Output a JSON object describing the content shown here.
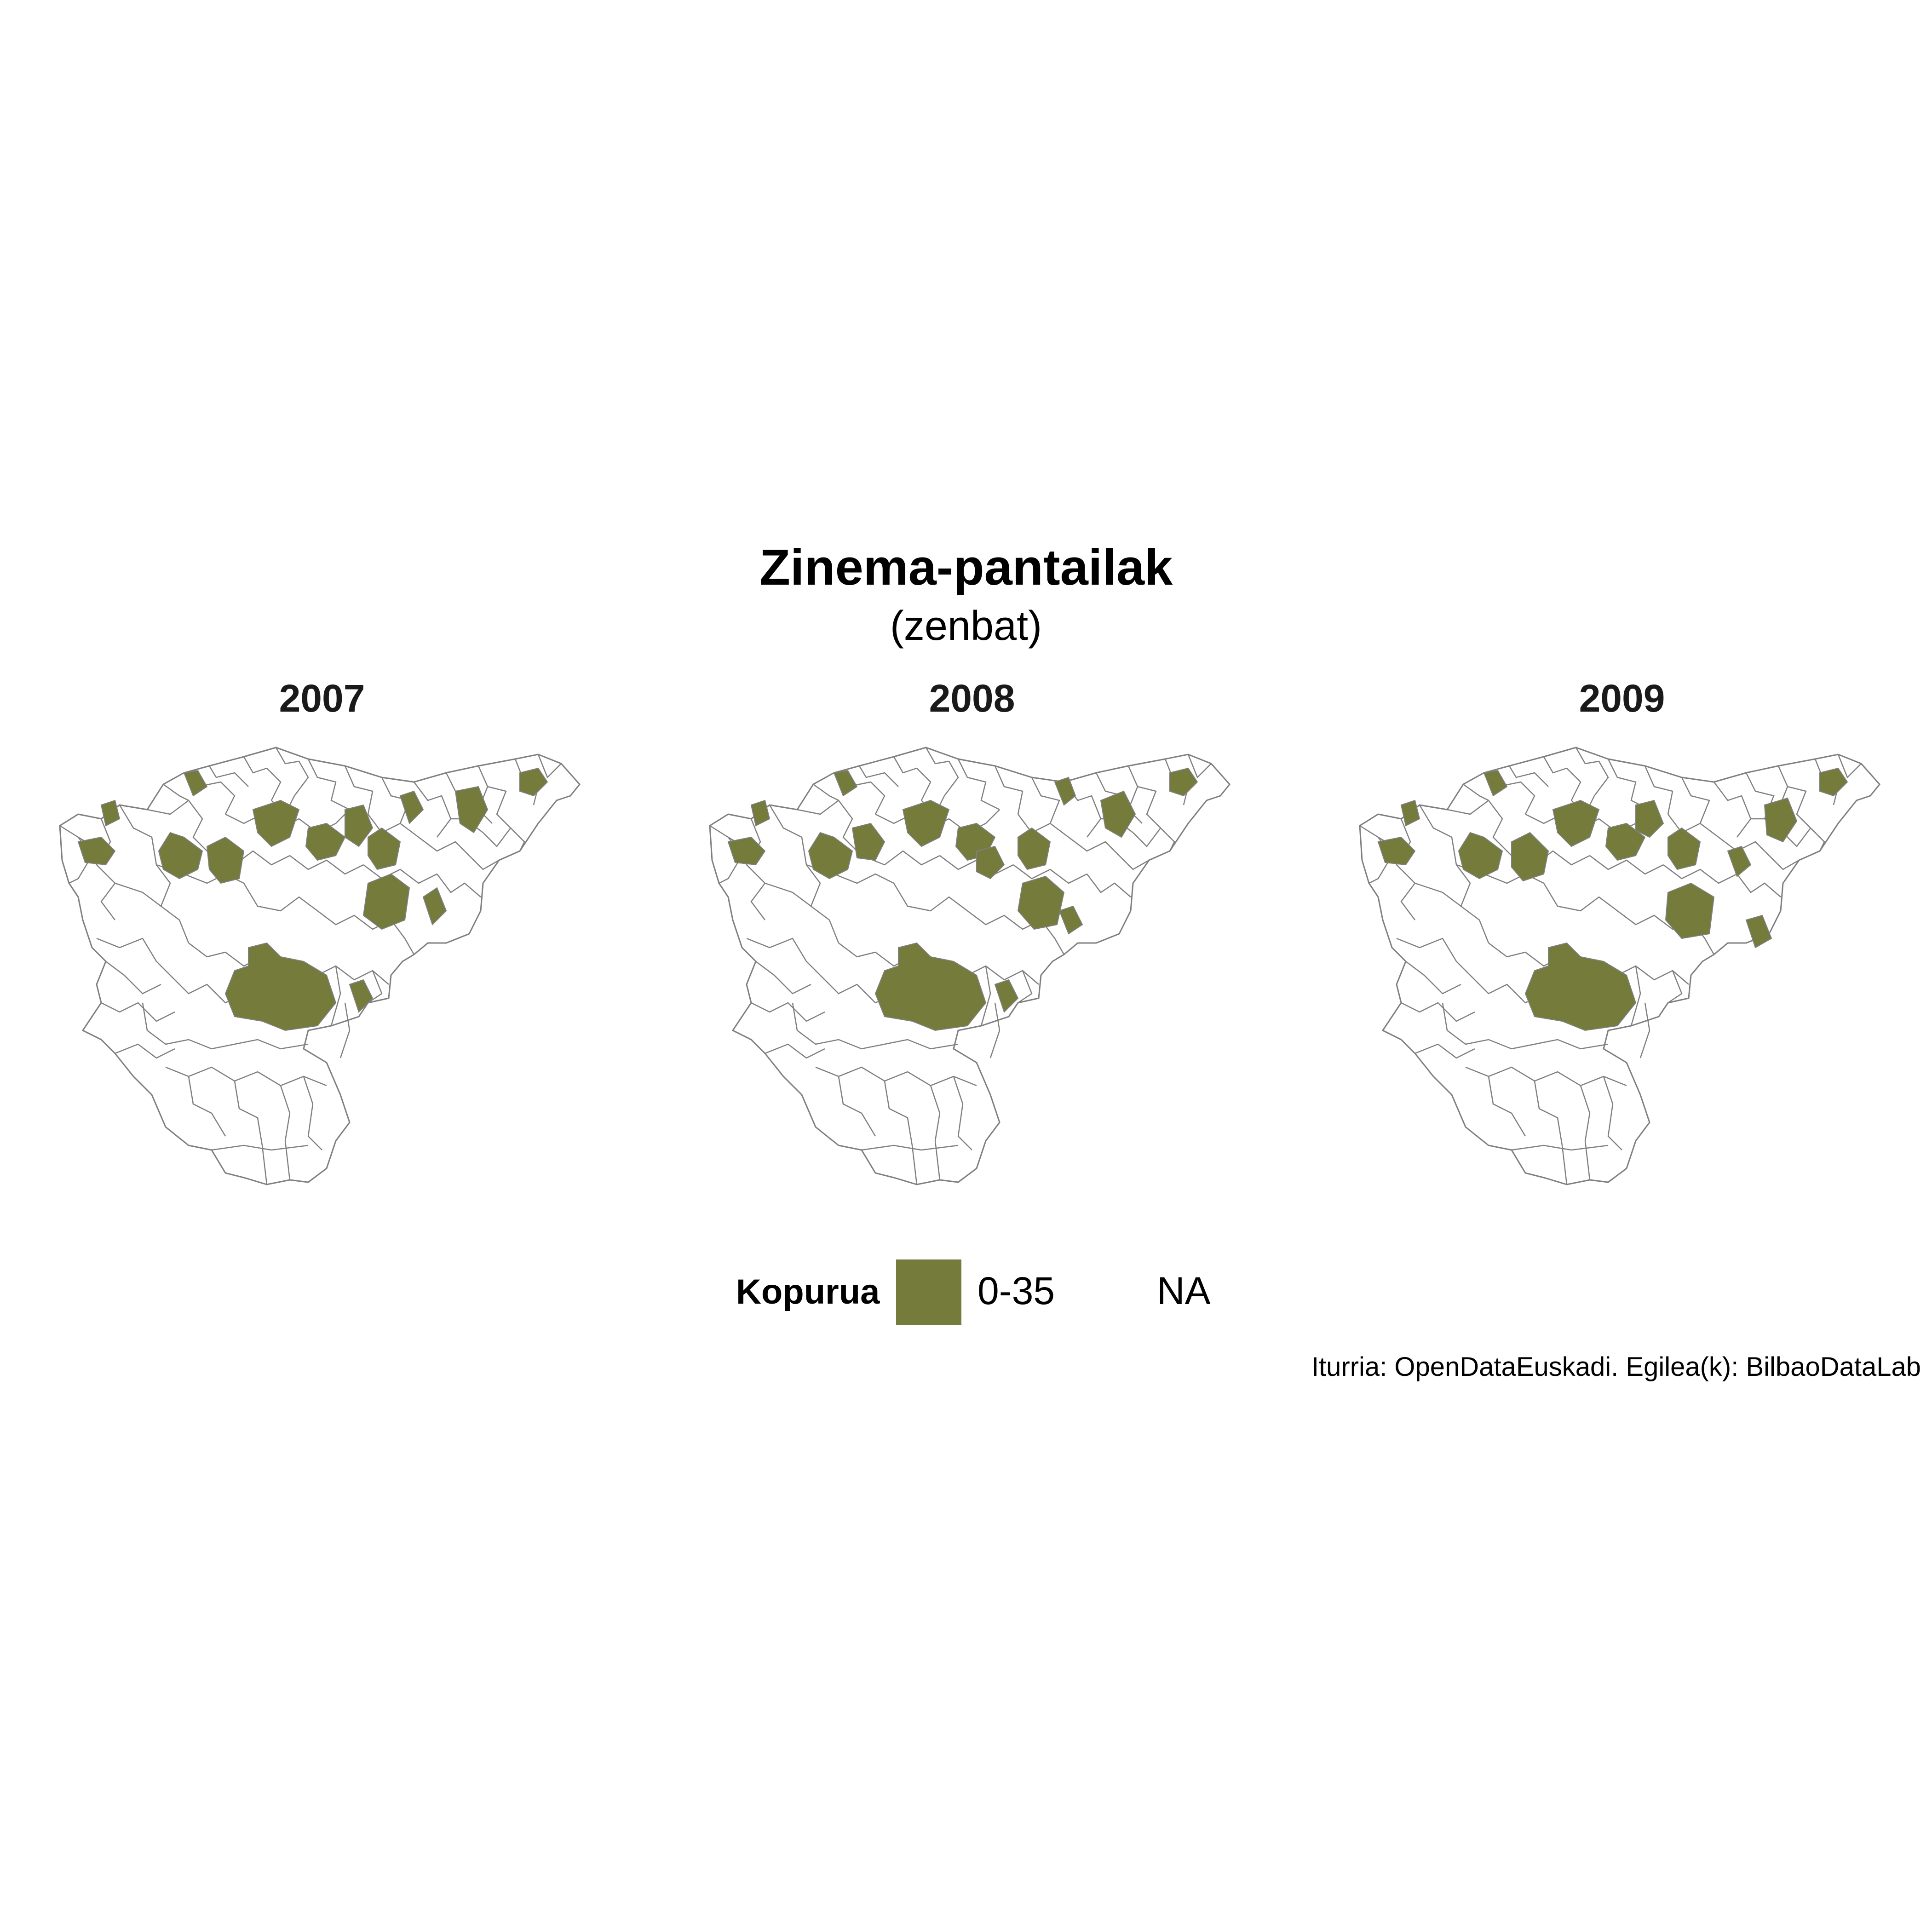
{
  "title": "Zinema-pantailak",
  "subtitle": "(zenbat)",
  "panels": [
    {
      "year": "2007"
    },
    {
      "year": "2008"
    },
    {
      "year": "2009"
    }
  ],
  "legend": {
    "title": "Kopurua",
    "items": [
      {
        "label": "0-35",
        "color": "#757b3a"
      },
      {
        "label": "NA",
        "color": "#ffffff"
      }
    ]
  },
  "caption": "Iturria: OpenDataEuskadi. Egilea(k): BilbaoDataLab",
  "colors": {
    "filled": "#757b3a",
    "empty": "#ffffff",
    "border": "#7f7f7f"
  }
}
